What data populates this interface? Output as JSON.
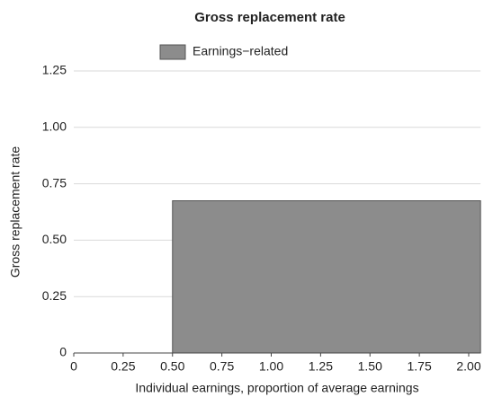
{
  "chart_data": {
    "type": "area",
    "title": "Gross replacement rate",
    "xlabel": "Individual earnings, proportion of average earnings",
    "ylabel": "Gross replacement rate",
    "x": [
      0,
      0.5,
      0.5,
      2.06
    ],
    "series": [
      {
        "name": "Earnings−related",
        "color": "#8c8c8c",
        "values": [
          0,
          0,
          0.675,
          0.675
        ]
      }
    ],
    "xlim": [
      0,
      2.06
    ],
    "ylim": [
      0,
      1.25
    ],
    "xticks": [
      0,
      0.25,
      {
        "value": 0.5,
        "label": "0.50"
      },
      0.75,
      {
        "value": 1,
        "label": "1.00"
      },
      1.25,
      {
        "value": 1.5,
        "label": "1.50"
      },
      1.75,
      {
        "value": 2,
        "label": "2.00"
      }
    ],
    "yticks": [
      0,
      0.25,
      {
        "value": 0.5,
        "label": "0.50"
      },
      0.75,
      {
        "value": 1,
        "label": "1.00"
      },
      1.25
    ],
    "grid": true
  }
}
